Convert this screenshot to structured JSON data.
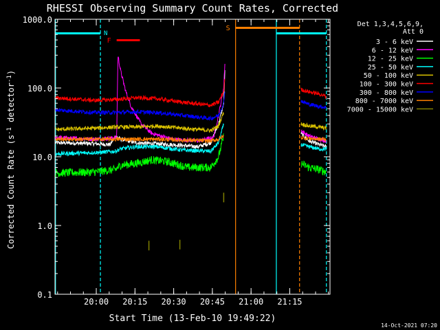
{
  "chart_data": {
    "type": "line",
    "title": "RHESSI Observing Summary Count Rates, Corrected",
    "xlabel": "Start Time (13-Feb-10 19:49:22)",
    "ylabel_prefix": "Corrected Count Rate (s",
    "ylabel_exp": "-1",
    "ylabel_mid": " detector",
    "ylabel_suffix": ")",
    "x_unit": "minutes since 19:49:22 (start time)",
    "x_range": [
      -5.4,
      101.2
    ],
    "y_scale": "log",
    "y_range": [
      0.1,
      1000
    ],
    "y_ticks": [
      {
        "v": 0.1,
        "label": "0.1"
      },
      {
        "v": 1,
        "label": "1.0"
      },
      {
        "v": 10,
        "label": "10.0"
      },
      {
        "v": 100,
        "label": "100.0"
      },
      {
        "v": 1000,
        "label": "1000.0"
      }
    ],
    "x_ticks": [
      {
        "v": 10.6,
        "label": "20:00"
      },
      {
        "v": 25.6,
        "label": "20:15"
      },
      {
        "v": 40.6,
        "label": "20:30"
      },
      {
        "v": 55.6,
        "label": "20:45"
      },
      {
        "v": 70.6,
        "label": "21:00"
      },
      {
        "v": 85.6,
        "label": "21:15"
      }
    ],
    "legend": {
      "header": [
        "Det 1,3,4,5,6,9,",
        "Att 0"
      ],
      "placement": "right"
    },
    "series": [
      {
        "name": "3 - 6 keV",
        "color": "#ffffff",
        "points": [
          [
            -5.2,
            16
          ],
          [
            10,
            15.5
          ],
          [
            16,
            15
          ],
          [
            18,
            20
          ],
          [
            20,
            18
          ],
          [
            26,
            16
          ],
          [
            40,
            15
          ],
          [
            50,
            14
          ],
          [
            55,
            16
          ],
          [
            58,
            30
          ],
          [
            60,
            60
          ],
          [
            60.5,
            200
          ]
        ],
        "points2": [
          [
            90,
            22
          ],
          [
            93,
            17
          ],
          [
            97,
            15
          ],
          [
            99.8,
            14
          ]
        ]
      },
      {
        "name": "6 - 12 keV",
        "color": "#ff00ff",
        "points": [
          [
            -5.2,
            19
          ],
          [
            10,
            18
          ],
          [
            18.5,
            19
          ],
          [
            19,
            300
          ],
          [
            20,
            180
          ],
          [
            22,
            90
          ],
          [
            24,
            55
          ],
          [
            28,
            30
          ],
          [
            32,
            22
          ],
          [
            40,
            18
          ],
          [
            50,
            17
          ],
          [
            56,
            19
          ],
          [
            58,
            40
          ],
          [
            60,
            100
          ],
          [
            60.5,
            260
          ]
        ],
        "points2": [
          [
            90,
            24
          ],
          [
            93,
            20
          ],
          [
            97,
            18
          ],
          [
            99.8,
            17
          ]
        ]
      },
      {
        "name": "12 - 25 keV",
        "color": "#00ff00",
        "points": [
          [
            -5.2,
            5.8
          ],
          [
            10,
            6
          ],
          [
            18,
            6.5
          ],
          [
            20,
            7.5
          ],
          [
            26,
            8
          ],
          [
            32,
            9
          ],
          [
            38,
            8.5
          ],
          [
            46,
            7
          ],
          [
            55,
            7
          ],
          [
            58,
            10
          ],
          [
            60,
            20
          ]
        ],
        "points2": [
          [
            90,
            8
          ],
          [
            93,
            7
          ],
          [
            97,
            6.5
          ],
          [
            99.8,
            6
          ]
        ]
      },
      {
        "name": "25 - 50 keV",
        "color": "#00ffff",
        "points": [
          [
            -5.2,
            11
          ],
          [
            10,
            11.5
          ],
          [
            18,
            12
          ],
          [
            20,
            13
          ],
          [
            26,
            14
          ],
          [
            34,
            14
          ],
          [
            44,
            12.5
          ],
          [
            55,
            12
          ],
          [
            58,
            16
          ],
          [
            60,
            30
          ]
        ],
        "points2": [
          [
            90,
            15
          ],
          [
            93,
            14
          ],
          [
            97,
            13
          ],
          [
            99.8,
            13
          ]
        ]
      },
      {
        "name": "50 - 100 keV",
        "color": "#d8c000",
        "points": [
          [
            -5.2,
            25
          ],
          [
            10,
            26
          ],
          [
            18,
            27
          ],
          [
            26,
            27
          ],
          [
            34,
            28
          ],
          [
            44,
            26
          ],
          [
            55,
            24
          ],
          [
            58,
            28
          ],
          [
            60,
            45
          ]
        ],
        "points2": [
          [
            90,
            30
          ],
          [
            93,
            28
          ],
          [
            97,
            27
          ],
          [
            99.8,
            26
          ]
        ]
      },
      {
        "name": "100 - 300 keV",
        "color": "#ff0000",
        "points": [
          [
            -5.2,
            72
          ],
          [
            10,
            66
          ],
          [
            18,
            68
          ],
          [
            26,
            72
          ],
          [
            34,
            70
          ],
          [
            44,
            62
          ],
          [
            55,
            56
          ],
          [
            58,
            62
          ],
          [
            60,
            90
          ],
          [
            60.5,
            150
          ]
        ],
        "points2": [
          [
            90,
            95
          ],
          [
            93,
            88
          ],
          [
            97,
            82
          ],
          [
            99.8,
            75
          ]
        ]
      },
      {
        "name": "300 - 800 keV",
        "color": "#0000ff",
        "points": [
          [
            -5.2,
            48
          ],
          [
            10,
            44
          ],
          [
            18,
            44
          ],
          [
            26,
            45
          ],
          [
            34,
            44
          ],
          [
            44,
            40
          ],
          [
            55,
            36
          ],
          [
            58,
            40
          ],
          [
            60,
            60
          ],
          [
            60.5,
            100
          ]
        ],
        "points2": [
          [
            90,
            65
          ],
          [
            93,
            58
          ],
          [
            97,
            54
          ],
          [
            99.8,
            52
          ]
        ]
      },
      {
        "name": "800 - 7000 keV",
        "color": "#ff8000",
        "points": [
          [
            -5.2,
            18
          ],
          [
            10,
            18
          ],
          [
            18,
            18
          ],
          [
            26,
            18
          ],
          [
            34,
            18
          ],
          [
            44,
            17.5
          ],
          [
            55,
            17
          ],
          [
            58,
            18
          ],
          [
            60,
            20
          ]
        ],
        "points2": [
          [
            90,
            19
          ],
          [
            93,
            18.5
          ],
          [
            97,
            18
          ],
          [
            99.8,
            18
          ]
        ]
      },
      {
        "name": "7000 - 15000 keV",
        "color": "#808000",
        "points": [],
        "spikes": [
          [
            31,
            0.6
          ],
          [
            43,
            0.62
          ],
          [
            60,
            3
          ]
        ]
      }
    ],
    "annotations": {
      "night_bars": [
        {
          "x0": -5.4,
          "x1": 12.2
        },
        {
          "x0": 80.4,
          "x1": 99.8
        }
      ],
      "saa_bar": {
        "label": "S",
        "x0": 64.6,
        "x1": 89.4,
        "color": "#ff8000"
      },
      "flare_bar": {
        "label": "F",
        "x0": 18.5,
        "x1": 27.5,
        "color": "#ff0000"
      },
      "night_label": "N",
      "vlines": [
        {
          "x": -5.2,
          "style": "solid",
          "color": "#00ffff"
        },
        {
          "x": 12.2,
          "style": "dashed",
          "color": "#00ffff"
        },
        {
          "x": 64.6,
          "style": "solid",
          "color": "#ff8000"
        },
        {
          "x": 80.4,
          "style": "solid",
          "color": "#00ffff"
        },
        {
          "x": 89.4,
          "style": "dashed",
          "color": "#ff8000"
        },
        {
          "x": 99.8,
          "style": "dashed",
          "color": "#00ffff"
        }
      ]
    }
  },
  "footer": {
    "timestamp": "14-Oct-2021 07:20"
  }
}
